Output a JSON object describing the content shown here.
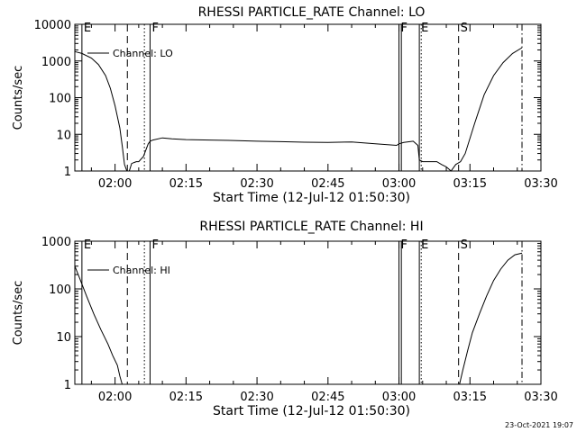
{
  "footer_timestamp": "23-Oct-2021 19:07",
  "chart_data": [
    {
      "type": "line",
      "title": "RHESSI PARTICLE_RATE Channel: LO",
      "xlabel": "Start Time (12-Jul-12 01:50:30)",
      "ylabel": "Counts/sec",
      "yscale": "log",
      "ylim": [
        1,
        10000
      ],
      "xlim_minutes": [
        1.5,
        100
      ],
      "x_ticks": [
        {
          "label": "02:00",
          "minute": 10
        },
        {
          "label": "02:15",
          "minute": 25
        },
        {
          "label": "02:30",
          "minute": 40
        },
        {
          "label": "02:45",
          "minute": 55
        },
        {
          "label": "03:00",
          "minute": 70
        },
        {
          "label": "03:15",
          "minute": 85
        },
        {
          "label": "03:30",
          "minute": 100
        }
      ],
      "y_ticks": [
        "1",
        "10",
        "100",
        "1000",
        "10000"
      ],
      "legend": "Channel: LO",
      "event_markers": [
        {
          "label": "E",
          "minute": 3,
          "style": "solid-edge"
        },
        {
          "label": "",
          "minute": 12.6,
          "style": "dashed"
        },
        {
          "label": "",
          "minute": 16.2,
          "style": "dotted"
        },
        {
          "label": "F",
          "minute": 17.4,
          "style": "solid"
        },
        {
          "label": "F",
          "minute": 70,
          "style": "solid"
        },
        {
          "label": "",
          "minute": 70.5,
          "style": "solid"
        },
        {
          "label": "E",
          "minute": 74.3,
          "style": "solid"
        },
        {
          "label": "",
          "minute": 74.7,
          "style": "dotted"
        },
        {
          "label": "S",
          "minute": 82.6,
          "style": "dashed"
        },
        {
          "label": "",
          "minute": 96,
          "style": "dashdot"
        }
      ],
      "series": [
        {
          "x": [
            1.5,
            3,
            5,
            6.5,
            8,
            9,
            10,
            11,
            11.5,
            12,
            12.5,
            13,
            13.5,
            14,
            14.5,
            15,
            16,
            17,
            17.4,
            18,
            20,
            22,
            25,
            30,
            35,
            40,
            45,
            50,
            55,
            60,
            65,
            69.5,
            70,
            71,
            73,
            74,
            74.3,
            75,
            76,
            77,
            78,
            79,
            80,
            81,
            82,
            83,
            84,
            86,
            88,
            90,
            92,
            94,
            96
          ],
          "y": [
            1800,
            1600,
            1200,
            800,
            400,
            180,
            60,
            15,
            5,
            1.5,
            1,
            1,
            1.6,
            1.7,
            1.8,
            1.8,
            2.5,
            5.5,
            6.5,
            7,
            8,
            7.5,
            7.2,
            7,
            6.8,
            6.5,
            6.3,
            6.1,
            6,
            6.2,
            5.5,
            5,
            5.5,
            6,
            6.5,
            5,
            2,
            1.8,
            1.8,
            1.8,
            1.8,
            1.5,
            1.3,
            1,
            1.5,
            1.8,
            3,
            20,
            120,
            400,
            900,
            1600,
            2300
          ]
        }
      ]
    },
    {
      "type": "line",
      "title": "RHESSI PARTICLE_RATE Channel: HI",
      "xlabel": "Start Time (12-Jul-12 01:50:30)",
      "ylabel": "Counts/sec",
      "yscale": "log",
      "ylim": [
        1,
        1000
      ],
      "xlim_minutes": [
        1.5,
        100
      ],
      "x_ticks": [
        {
          "label": "02:00",
          "minute": 10
        },
        {
          "label": "02:15",
          "minute": 25
        },
        {
          "label": "02:30",
          "minute": 40
        },
        {
          "label": "02:45",
          "minute": 55
        },
        {
          "label": "03:00",
          "minute": 70
        },
        {
          "label": "03:15",
          "minute": 85
        },
        {
          "label": "03:30",
          "minute": 100
        }
      ],
      "y_ticks": [
        "1",
        "10",
        "100",
        "1000"
      ],
      "legend": "Channel: HI",
      "event_markers": [
        {
          "label": "E",
          "minute": 3,
          "style": "solid-edge"
        },
        {
          "label": "",
          "minute": 12.6,
          "style": "dashed"
        },
        {
          "label": "",
          "minute": 16.2,
          "style": "dotted"
        },
        {
          "label": "F",
          "minute": 17.4,
          "style": "solid"
        },
        {
          "label": "F",
          "minute": 70,
          "style": "solid"
        },
        {
          "label": "",
          "minute": 70.5,
          "style": "solid"
        },
        {
          "label": "E",
          "minute": 74.3,
          "style": "solid"
        },
        {
          "label": "",
          "minute": 74.7,
          "style": "dotted"
        },
        {
          "label": "S",
          "minute": 82.6,
          "style": "dashed"
        },
        {
          "label": "",
          "minute": 96,
          "style": "dashdot"
        }
      ],
      "series": [
        {
          "x": [
            1.5,
            2.5,
            4,
            5.5,
            7,
            8.5,
            9.5,
            10.5,
            11,
            11.5
          ],
          "y": [
            300,
            170,
            70,
            30,
            14,
            7,
            4,
            2.5,
            1.5,
            1
          ]
        },
        {
          "x": [
            82.8,
            83.5,
            84.5,
            85.5,
            87,
            88.5,
            90,
            91.5,
            93,
            94.5,
            96
          ],
          "y": [
            1,
            2,
            5,
            12,
            30,
            70,
            150,
            260,
            400,
            520,
            560
          ]
        }
      ]
    }
  ]
}
